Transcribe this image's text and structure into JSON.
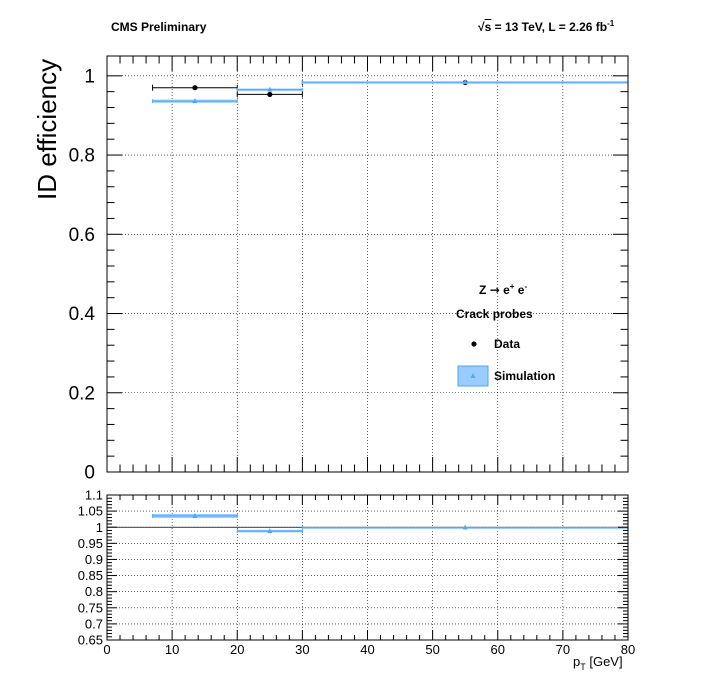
{
  "header": {
    "experiment": "CMS Preliminary",
    "sqrt_symbol": "√",
    "sqrt_arg": "s",
    "lumi_prefix": " = 13 TeV, L = 2.26 fb",
    "lumi_exp": "-1"
  },
  "legend": {
    "process": {
      "z": "Z",
      "arrow": "→",
      "e1": "e",
      "plus": "+",
      "e2": "e",
      "minus": "-"
    },
    "probes": "Crack probes",
    "data_label": "Data",
    "sim_label": "Simulation"
  },
  "x_axis": {
    "p": "p",
    "sub": "T",
    "unit": " [GeV]"
  },
  "chart_data": [
    {
      "type": "scatter",
      "panel": "main",
      "ylabel": "ID efficiency",
      "xlim": [
        0,
        80
      ],
      "ylim": [
        0,
        1.05
      ],
      "yticks": [
        "0",
        "0.2",
        "0.4",
        "0.6",
        "0.8",
        "1"
      ],
      "xticks": [
        "0",
        "10",
        "20",
        "30",
        "40",
        "50",
        "60",
        "70",
        "80"
      ],
      "grid": true,
      "legend_position": "right",
      "series": [
        {
          "name": "Data",
          "color": "#000000",
          "marker": "circle",
          "points": [
            {
              "x": 13.5,
              "xlow": 7,
              "xhigh": 20,
              "y": 0.97,
              "yerr": 0.004
            },
            {
              "x": 25,
              "xlow": 20,
              "xhigh": 30,
              "y": 0.953,
              "yerr": 0.004
            },
            {
              "x": 55,
              "xlow": 30,
              "xhigh": 80,
              "y": 0.983,
              "yerr": 0.002
            }
          ]
        },
        {
          "name": "Simulation",
          "color": "#4da6ff",
          "marker": "triangle",
          "points": [
            {
              "x": 13.5,
              "xlow": 7,
              "xhigh": 20,
              "y": 0.936,
              "yerr": 0.004
            },
            {
              "x": 25,
              "xlow": 20,
              "xhigh": 30,
              "y": 0.965,
              "yerr": 0.003
            },
            {
              "x": 55,
              "xlow": 30,
              "xhigh": 80,
              "y": 0.984,
              "yerr": 0.001
            }
          ]
        }
      ]
    },
    {
      "type": "scatter",
      "panel": "ratio",
      "xlim": [
        0,
        80
      ],
      "ylim": [
        0.65,
        1.1
      ],
      "yticks": [
        "0.65",
        "0.7",
        "0.75",
        "0.8",
        "0.85",
        "0.9",
        "0.95",
        "1",
        "1.05",
        "1.1"
      ],
      "xticks": [
        "0",
        "10",
        "20",
        "30",
        "40",
        "50",
        "60",
        "70",
        "80"
      ],
      "grid": true,
      "series": [
        {
          "color": "#4da6ff",
          "marker": "triangle",
          "points": [
            {
              "x": 13.5,
              "xlow": 7,
              "xhigh": 20,
              "y": 1.035,
              "yerr": 0.006
            },
            {
              "x": 25,
              "xlow": 20,
              "xhigh": 30,
              "y": 0.988,
              "yerr": 0.004
            },
            {
              "x": 55,
              "xlow": 30,
              "xhigh": 80,
              "y": 0.999,
              "yerr": 0.002
            }
          ]
        }
      ]
    }
  ]
}
